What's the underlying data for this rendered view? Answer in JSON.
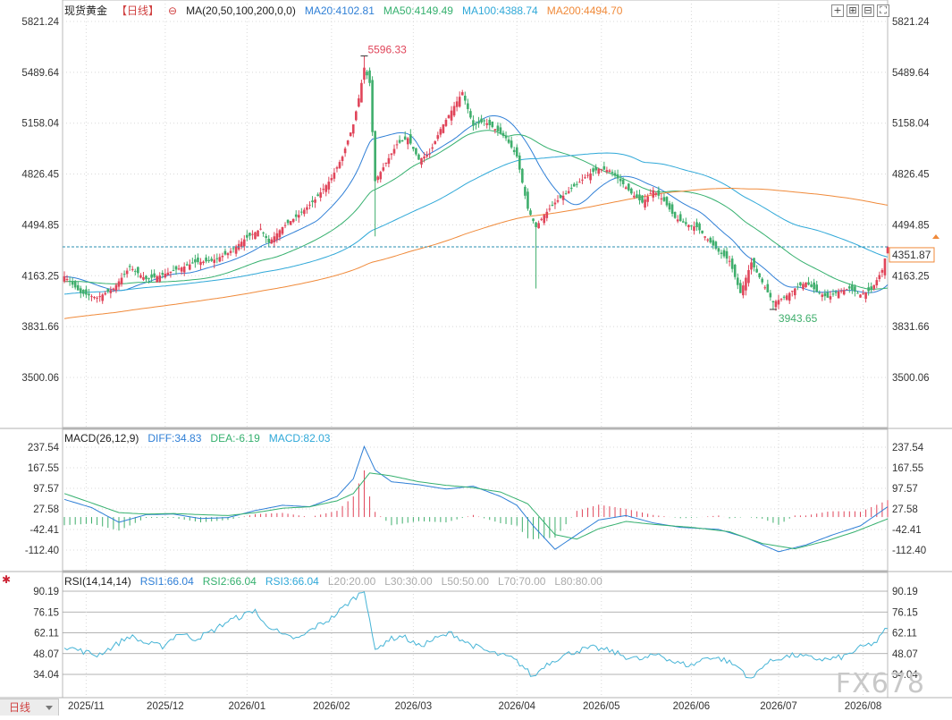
{
  "header": {
    "symbol": "现货黄金",
    "period": "【日线】",
    "ma_label": "MA(20,50,100,200,0,0)",
    "ma20": "MA20:4102.81",
    "ma50": "MA50:4149.49",
    "ma100": "MA100:4388.74",
    "ma200": "MA200:4494.70"
  },
  "macd_header": {
    "label": "MACD(26,12,9)",
    "diff": "DIFF:34.83",
    "dea": "DEA:-6.19",
    "macd": "MACD:82.03"
  },
  "rsi_header": {
    "label": "RSI(14,14,14)",
    "rsi1": "RSI1:66.04",
    "rsi2": "RSI2:66.04",
    "rsi3": "RSI3:66.04",
    "l20": "L20:20.00",
    "l30": "L30:30.00",
    "l50": "L50:50.00",
    "l70": "L70:70.00",
    "l80": "L80:80.00"
  },
  "footer": {
    "period_tab": "日线",
    "watermark": "FX678"
  },
  "colors": {
    "up": "#e0455a",
    "down": "#3fae6c",
    "ma20": "#2f7fd6",
    "ma50": "#35b06e",
    "ma100": "#2fa8d8",
    "ma200": "#f08a3a",
    "diff": "#2f7fd6",
    "dea": "#35b06e",
    "rsi": "#46b4d6",
    "grid": "#d8d8d8",
    "axis_text": "#333333",
    "current_line": "#2a8fb0",
    "price_tag": "#f08a3a"
  },
  "chart_data": [
    {
      "type": "candlestick",
      "title": "现货黄金【日线】",
      "y_ticks": [
        "5821.24",
        "5489.64",
        "5158.04",
        "4826.45",
        "4494.85",
        "4163.25",
        "3831.66",
        "3500.06"
      ],
      "ylim": [
        3200,
        5900
      ],
      "x_ticks": [
        "2025/11",
        "2025/12",
        "2026/01",
        "2026/02",
        "2026/03",
        "2026/04",
        "2026/05",
        "2026/06",
        "2026/07",
        "2026/08"
      ],
      "current_price": "4351.87",
      "high_annotation": "5596.33",
      "low_annotation": "3943.65",
      "close_path": [
        [
          0,
          4160
        ],
        [
          6,
          4050
        ],
        [
          12,
          4020
        ],
        [
          18,
          4080
        ],
        [
          24,
          4220
        ],
        [
          30,
          4140
        ],
        [
          36,
          4170
        ],
        [
          42,
          4210
        ],
        [
          48,
          4250
        ],
        [
          54,
          4260
        ],
        [
          60,
          4310
        ],
        [
          66,
          4400
        ],
        [
          72,
          4470
        ],
        [
          75,
          4380
        ],
        [
          80,
          4480
        ],
        [
          86,
          4560
        ],
        [
          92,
          4660
        ],
        [
          98,
          4800
        ],
        [
          102,
          4940
        ],
        [
          106,
          5150
        ],
        [
          108,
          5320
        ],
        [
          110,
          5520
        ],
        [
          112,
          5420
        ],
        [
          114,
          4780
        ],
        [
          118,
          4900
        ],
        [
          122,
          5020
        ],
        [
          126,
          5060
        ],
        [
          130,
          4920
        ],
        [
          134,
          4960
        ],
        [
          138,
          5120
        ],
        [
          142,
          5240
        ],
        [
          146,
          5360
        ],
        [
          150,
          5140
        ],
        [
          154,
          5170
        ],
        [
          158,
          5120
        ],
        [
          162,
          5060
        ],
        [
          166,
          4940
        ],
        [
          170,
          4600
        ],
        [
          173,
          4480
        ],
        [
          176,
          4560
        ],
        [
          180,
          4640
        ],
        [
          184,
          4700
        ],
        [
          188,
          4760
        ],
        [
          192,
          4820
        ],
        [
          196,
          4860
        ],
        [
          200,
          4850
        ],
        [
          204,
          4780
        ],
        [
          208,
          4700
        ],
        [
          212,
          4640
        ],
        [
          216,
          4720
        ],
        [
          220,
          4650
        ],
        [
          224,
          4540
        ],
        [
          228,
          4500
        ],
        [
          232,
          4480
        ],
        [
          236,
          4400
        ],
        [
          240,
          4320
        ],
        [
          244,
          4260
        ],
        [
          248,
          4050
        ],
        [
          252,
          4250
        ],
        [
          256,
          4120
        ],
        [
          260,
          3990
        ],
        [
          264,
          4020
        ],
        [
          268,
          4080
        ],
        [
          272,
          4120
        ],
        [
          276,
          4060
        ],
        [
          280,
          4020
        ],
        [
          284,
          4060
        ],
        [
          288,
          4080
        ],
        [
          292,
          4040
        ],
        [
          296,
          4070
        ],
        [
          300,
          4200
        ],
        [
          302,
          4351
        ]
      ],
      "low_index": 260,
      "high_index": 110,
      "bar_count": 303
    },
    {
      "type": "line",
      "title": "MACD(26,12,9)",
      "y_ticks": [
        "237.54",
        "167.55",
        "97.57",
        "27.58",
        "-42.41",
        "-112.40"
      ],
      "ylim": [
        -140,
        265
      ],
      "diff_path": [
        [
          0,
          60
        ],
        [
          10,
          32
        ],
        [
          20,
          -18
        ],
        [
          30,
          8
        ],
        [
          40,
          10
        ],
        [
          50,
          -5
        ],
        [
          60,
          -2
        ],
        [
          70,
          22
        ],
        [
          80,
          40
        ],
        [
          90,
          35
        ],
        [
          100,
          70
        ],
        [
          106,
          130
        ],
        [
          110,
          240
        ],
        [
          114,
          160
        ],
        [
          120,
          120
        ],
        [
          130,
          110
        ],
        [
          140,
          95
        ],
        [
          150,
          105
        ],
        [
          160,
          70
        ],
        [
          166,
          40
        ],
        [
          172,
          -30
        ],
        [
          180,
          -110
        ],
        [
          188,
          -60
        ],
        [
          196,
          -10
        ],
        [
          206,
          5
        ],
        [
          216,
          -20
        ],
        [
          226,
          -35
        ],
        [
          240,
          -42
        ],
        [
          250,
          -70
        ],
        [
          262,
          -118
        ],
        [
          272,
          -95
        ],
        [
          282,
          -60
        ],
        [
          292,
          -30
        ],
        [
          302,
          34.83
        ]
      ],
      "dea_path": [
        [
          0,
          80
        ],
        [
          10,
          48
        ],
        [
          20,
          15
        ],
        [
          30,
          10
        ],
        [
          40,
          12
        ],
        [
          50,
          8
        ],
        [
          60,
          5
        ],
        [
          70,
          15
        ],
        [
          80,
          30
        ],
        [
          90,
          35
        ],
        [
          100,
          55
        ],
        [
          106,
          80
        ],
        [
          112,
          150
        ],
        [
          120,
          140
        ],
        [
          130,
          120
        ],
        [
          140,
          108
        ],
        [
          150,
          100
        ],
        [
          160,
          85
        ],
        [
          170,
          45
        ],
        [
          180,
          -60
        ],
        [
          188,
          -75
        ],
        [
          196,
          -40
        ],
        [
          206,
          -15
        ],
        [
          216,
          -25
        ],
        [
          230,
          -35
        ],
        [
          244,
          -50
        ],
        [
          256,
          -90
        ],
        [
          268,
          -108
        ],
        [
          280,
          -80
        ],
        [
          290,
          -50
        ],
        [
          302,
          -6.19
        ]
      ]
    },
    {
      "type": "line",
      "title": "RSI(14,14,14)",
      "y_ticks": [
        "90.19",
        "76.15",
        "62.11",
        "48.07",
        "34.04"
      ],
      "ylim": [
        25,
        96
      ],
      "rsi_path": [
        [
          0,
          53
        ],
        [
          6,
          50
        ],
        [
          12,
          47
        ],
        [
          18,
          53
        ],
        [
          24,
          60
        ],
        [
          30,
          55
        ],
        [
          36,
          53
        ],
        [
          42,
          62
        ],
        [
          48,
          58
        ],
        [
          54,
          63
        ],
        [
          60,
          70
        ],
        [
          66,
          74
        ],
        [
          70,
          78
        ],
        [
          72,
          70
        ],
        [
          76,
          66
        ],
        [
          80,
          60
        ],
        [
          86,
          58
        ],
        [
          92,
          66
        ],
        [
          98,
          72
        ],
        [
          104,
          82
        ],
        [
          108,
          88
        ],
        [
          110,
          91
        ],
        [
          112,
          72
        ],
        [
          114,
          49
        ],
        [
          118,
          57
        ],
        [
          124,
          60
        ],
        [
          130,
          53
        ],
        [
          136,
          58
        ],
        [
          142,
          62
        ],
        [
          148,
          55
        ],
        [
          156,
          49
        ],
        [
          164,
          45
        ],
        [
          168,
          40
        ],
        [
          172,
          32
        ],
        [
          176,
          40
        ],
        [
          182,
          46
        ],
        [
          188,
          50
        ],
        [
          194,
          52
        ],
        [
          200,
          50
        ],
        [
          206,
          46
        ],
        [
          212,
          44
        ],
        [
          218,
          48
        ],
        [
          224,
          42
        ],
        [
          230,
          40
        ],
        [
          236,
          46
        ],
        [
          242,
          44
        ],
        [
          248,
          38
        ],
        [
          252,
          30
        ],
        [
          256,
          40
        ],
        [
          262,
          45
        ],
        [
          268,
          47
        ],
        [
          274,
          45
        ],
        [
          280,
          44
        ],
        [
          286,
          46
        ],
        [
          292,
          52
        ],
        [
          298,
          56
        ],
        [
          302,
          66.04
        ]
      ]
    }
  ]
}
